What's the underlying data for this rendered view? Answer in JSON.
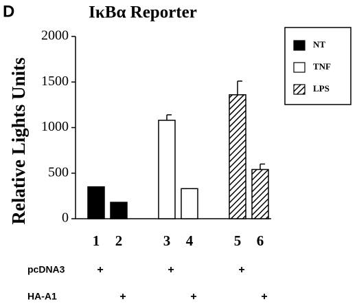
{
  "chart_data": {
    "type": "bar",
    "panel_label": "D",
    "title": "IκBα Reporter",
    "y_label": "Relative Lights Units",
    "categories": [
      "1",
      "2",
      "3",
      "4",
      "5",
      "6"
    ],
    "series": [
      {
        "name": "NT",
        "color": "#000000",
        "pattern": "solid",
        "values": [
          350,
          180,
          null,
          null,
          null,
          null
        ],
        "errors": [
          null,
          null,
          null,
          null,
          null,
          null
        ]
      },
      {
        "name": "TNF",
        "color": "#ffffff",
        "pattern": "solid",
        "values": [
          null,
          null,
          1080,
          330,
          null,
          null
        ],
        "errors": [
          null,
          null,
          60,
          null,
          null,
          null
        ]
      },
      {
        "name": "LPS",
        "color": "#000000",
        "pattern": "hatch",
        "values": [
          null,
          null,
          null,
          null,
          1360,
          540
        ],
        "errors": [
          null,
          null,
          null,
          null,
          150,
          60
        ]
      }
    ],
    "ylim": [
      0,
      2000
    ],
    "yticks": [
      0,
      500,
      1000,
      1500,
      2000
    ],
    "legend": "upper-right",
    "conditions": [
      {
        "label": "pcDNA3",
        "marks": [
          "+",
          null,
          "+",
          null,
          "+",
          null
        ]
      },
      {
        "label": "HA-A1",
        "marks": [
          null,
          "+",
          null,
          "+",
          null,
          "+"
        ]
      }
    ]
  }
}
